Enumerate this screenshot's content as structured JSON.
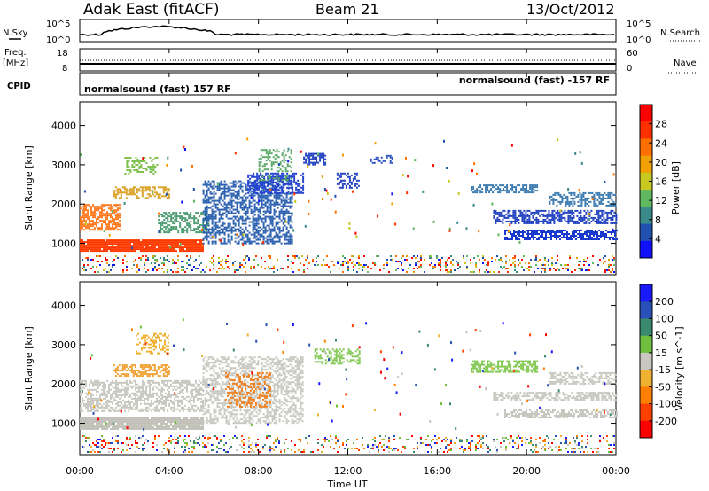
{
  "header": {
    "title": "Adak East (fitACF)",
    "beam": "Beam 21",
    "date": "13/Oct/2012"
  },
  "noise_panel": {
    "left_label": "N.Sky",
    "right_label": "N.Search",
    "left_ticks": [
      "10^5",
      "10^0"
    ],
    "right_ticks": [
      "10^5",
      "10^0"
    ]
  },
  "freq_panel": {
    "left_label_1": "Freq.",
    "left_label_2": "[MHz]",
    "right_label": "Nave",
    "left_ticks": [
      "18",
      "8"
    ],
    "right_ticks": [
      "60",
      "0"
    ]
  },
  "cpid_panel": {
    "label": "CPID",
    "left_text": "normalsound (fast) 157 RF",
    "right_text": "normalsound (fast) -157 RF"
  },
  "chart_data": [
    {
      "type": "heatmap",
      "name": "power-panel",
      "ylabel": "Slant Range [km]",
      "xlabel": "",
      "yticks": [
        "1000",
        "2000",
        "3000",
        "4000"
      ],
      "ylim": [
        200,
        4600
      ],
      "xlim": [
        0,
        24
      ],
      "colorbar": {
        "label": "Power [dB]",
        "ticks": [
          "4",
          "8",
          "12",
          "16",
          "20",
          "24",
          "28"
        ],
        "range": [
          0,
          32
        ],
        "colors": [
          "#1010ff",
          "#2050b0",
          "#3a8a8a",
          "#60b860",
          "#c8c820",
          "#f0a000",
          "#ff7000",
          "#ff3000",
          "#ff0000"
        ]
      },
      "bands": [
        {
          "t0": 0.0,
          "t1": 5.5,
          "r0": 800,
          "r1": 1100,
          "c": "#ff3a00",
          "d": 0.95
        },
        {
          "t0": 0.0,
          "t1": 1.8,
          "r0": 1350,
          "r1": 2000,
          "c": "#ff7a20",
          "d": 0.65
        },
        {
          "t0": 1.5,
          "t1": 4.0,
          "r0": 2150,
          "r1": 2450,
          "c": "#d8a020",
          "d": 0.5
        },
        {
          "t0": 2.0,
          "t1": 3.5,
          "r0": 2750,
          "r1": 3200,
          "c": "#7bbf48",
          "d": 0.4
        },
        {
          "t0": 3.5,
          "t1": 5.8,
          "r0": 1300,
          "r1": 1800,
          "c": "#4a9a70",
          "d": 0.5
        },
        {
          "t0": 5.5,
          "t1": 9.5,
          "r0": 1000,
          "r1": 2600,
          "c": "#2a5fb0",
          "d": 0.55
        },
        {
          "t0": 7.5,
          "t1": 10.0,
          "r0": 2300,
          "r1": 2800,
          "c": "#2040d0",
          "d": 0.6
        },
        {
          "t0": 8.0,
          "t1": 9.5,
          "r0": 2600,
          "r1": 3400,
          "c": "#5aa868",
          "d": 0.3
        },
        {
          "t0": 10.0,
          "t1": 11.0,
          "r0": 3000,
          "r1": 3300,
          "c": "#2040c0",
          "d": 0.6
        },
        {
          "t0": 11.5,
          "t1": 12.5,
          "r0": 2400,
          "r1": 2800,
          "c": "#2040c0",
          "d": 0.5
        },
        {
          "t0": 13.0,
          "t1": 14.0,
          "r0": 3050,
          "r1": 3250,
          "c": "#2a50c0",
          "d": 0.4
        },
        {
          "t0": 17.5,
          "t1": 20.5,
          "r0": 2300,
          "r1": 2500,
          "c": "#3a7ab0",
          "d": 0.6
        },
        {
          "t0": 18.5,
          "t1": 24.0,
          "r0": 1500,
          "r1": 1850,
          "c": "#2040c0",
          "d": 0.6
        },
        {
          "t0": 19.0,
          "t1": 24.0,
          "r0": 1100,
          "r1": 1350,
          "c": "#1838d0",
          "d": 0.65
        },
        {
          "t0": 21.0,
          "t1": 24.0,
          "r0": 1950,
          "r1": 2300,
          "c": "#3a7ab0",
          "d": 0.5
        }
      ]
    },
    {
      "type": "heatmap",
      "name": "velocity-panel",
      "ylabel": "Slant Range [km]",
      "xlabel": "Time UT",
      "yticks": [
        "1000",
        "2000",
        "3000",
        "4000"
      ],
      "ylim": [
        200,
        4600
      ],
      "xlim": [
        0,
        24
      ],
      "xticks": [
        "00:00",
        "04:00",
        "08:00",
        "12:00",
        "16:00",
        "20:00",
        "00:00"
      ],
      "colorbar": {
        "label": "Velocity [m s^-1]",
        "ticks": [
          "200",
          "100",
          "50",
          "15",
          "-15",
          "-50",
          "-100",
          "-200"
        ],
        "colors": [
          "#1a1aff",
          "#2850b8",
          "#3a8a70",
          "#70c040",
          "#c8c8c0",
          "#f0b030",
          "#ff8000",
          "#ff4000",
          "#ff0000"
        ]
      },
      "bands": [
        {
          "t0": 0.0,
          "t1": 5.5,
          "r0": 850,
          "r1": 1150,
          "c": "#c0c0b8",
          "d": 0.95
        },
        {
          "t0": 0.0,
          "t1": 5.5,
          "r0": 1300,
          "r1": 2100,
          "c": "#c8c8c0",
          "d": 0.55
        },
        {
          "t0": 1.5,
          "t1": 4.0,
          "r0": 2200,
          "r1": 2500,
          "c": "#f0a030",
          "d": 0.55
        },
        {
          "t0": 2.5,
          "t1": 4.0,
          "r0": 2800,
          "r1": 3300,
          "c": "#f0b030",
          "d": 0.4
        },
        {
          "t0": 5.5,
          "t1": 10.0,
          "r0": 1000,
          "r1": 2700,
          "c": "#c8c8c0",
          "d": 0.5
        },
        {
          "t0": 6.5,
          "t1": 8.5,
          "r0": 1400,
          "r1": 2300,
          "c": "#f08020",
          "d": 0.4
        },
        {
          "t0": 10.5,
          "t1": 12.5,
          "r0": 2500,
          "r1": 2900,
          "c": "#80c850",
          "d": 0.45
        },
        {
          "t0": 17.5,
          "t1": 20.5,
          "r0": 2300,
          "r1": 2600,
          "c": "#80c850",
          "d": 0.6
        },
        {
          "t0": 18.5,
          "t1": 24.0,
          "r0": 1600,
          "r1": 1800,
          "c": "#c8c8c0",
          "d": 0.6
        },
        {
          "t0": 19.0,
          "t1": 24.0,
          "r0": 1150,
          "r1": 1350,
          "c": "#c8c8c0",
          "d": 0.6
        },
        {
          "t0": 21.0,
          "t1": 24.0,
          "r0": 2000,
          "r1": 2300,
          "c": "#c8c8c0",
          "d": 0.5
        }
      ]
    }
  ]
}
